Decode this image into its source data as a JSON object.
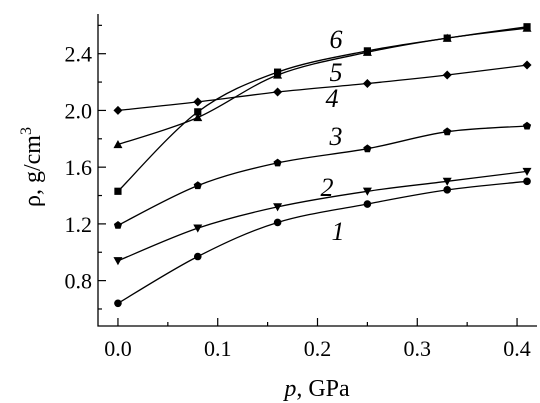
{
  "chart_data": {
    "type": "line",
    "xlabel": {
      "var": "p",
      "rest": ", GPa"
    },
    "ylabel": {
      "main": "ρ, g/cm",
      "sup": "3"
    },
    "xlim": [
      -0.02,
      0.42
    ],
    "ylim": [
      0.48,
      2.68
    ],
    "x_ticks": [
      {
        "value": 0.0,
        "label": "0.0"
      },
      {
        "value": 0.1,
        "label": "0.1"
      },
      {
        "value": 0.2,
        "label": "0.2"
      },
      {
        "value": 0.3,
        "label": "0.3"
      },
      {
        "value": 0.4,
        "label": "0.4"
      }
    ],
    "x_minor_ticks": [
      0.05,
      0.15,
      0.25,
      0.35
    ],
    "y_ticks": [
      {
        "value": 0.8,
        "label": "0.8"
      },
      {
        "value": 1.2,
        "label": "1.2"
      },
      {
        "value": 1.6,
        "label": "1.6"
      },
      {
        "value": 2.0,
        "label": "2.0"
      },
      {
        "value": 2.4,
        "label": "2.4"
      }
    ],
    "y_minor_ticks": [
      0.6,
      1.0,
      1.4,
      1.8,
      2.2,
      2.6
    ],
    "grid": false,
    "series": [
      {
        "label": "1",
        "marker": "circle",
        "x": [
          0,
          0.08,
          0.16,
          0.25,
          0.33,
          0.41
        ],
        "y": [
          0.64,
          0.97,
          1.21,
          1.34,
          1.44,
          1.5
        ]
      },
      {
        "label": "2",
        "marker": "triangle-down",
        "x": [
          0,
          0.08,
          0.16,
          0.25,
          0.33,
          0.41
        ],
        "y": [
          0.94,
          1.17,
          1.32,
          1.43,
          1.5,
          1.57
        ]
      },
      {
        "label": "3",
        "marker": "pentagon",
        "x": [
          0,
          0.08,
          0.16,
          0.25,
          0.33,
          0.41
        ],
        "y": [
          1.19,
          1.47,
          1.63,
          1.73,
          1.85,
          1.89
        ]
      },
      {
        "label": "4",
        "marker": "diamond",
        "x": [
          0,
          0.08,
          0.16,
          0.25,
          0.33,
          0.41
        ],
        "y": [
          2.0,
          2.06,
          2.13,
          2.19,
          2.25,
          2.32
        ]
      },
      {
        "label": "5",
        "marker": "triangle-up",
        "x": [
          0,
          0.08,
          0.16,
          0.25,
          0.33,
          0.41
        ],
        "y": [
          1.76,
          1.95,
          2.25,
          2.41,
          2.51,
          2.58
        ]
      },
      {
        "label": "6",
        "marker": "square",
        "x": [
          0,
          0.08,
          0.16,
          0.25,
          0.33,
          0.41
        ],
        "y": [
          1.43,
          1.99,
          2.27,
          2.42,
          2.51,
          2.59
        ]
      }
    ]
  }
}
